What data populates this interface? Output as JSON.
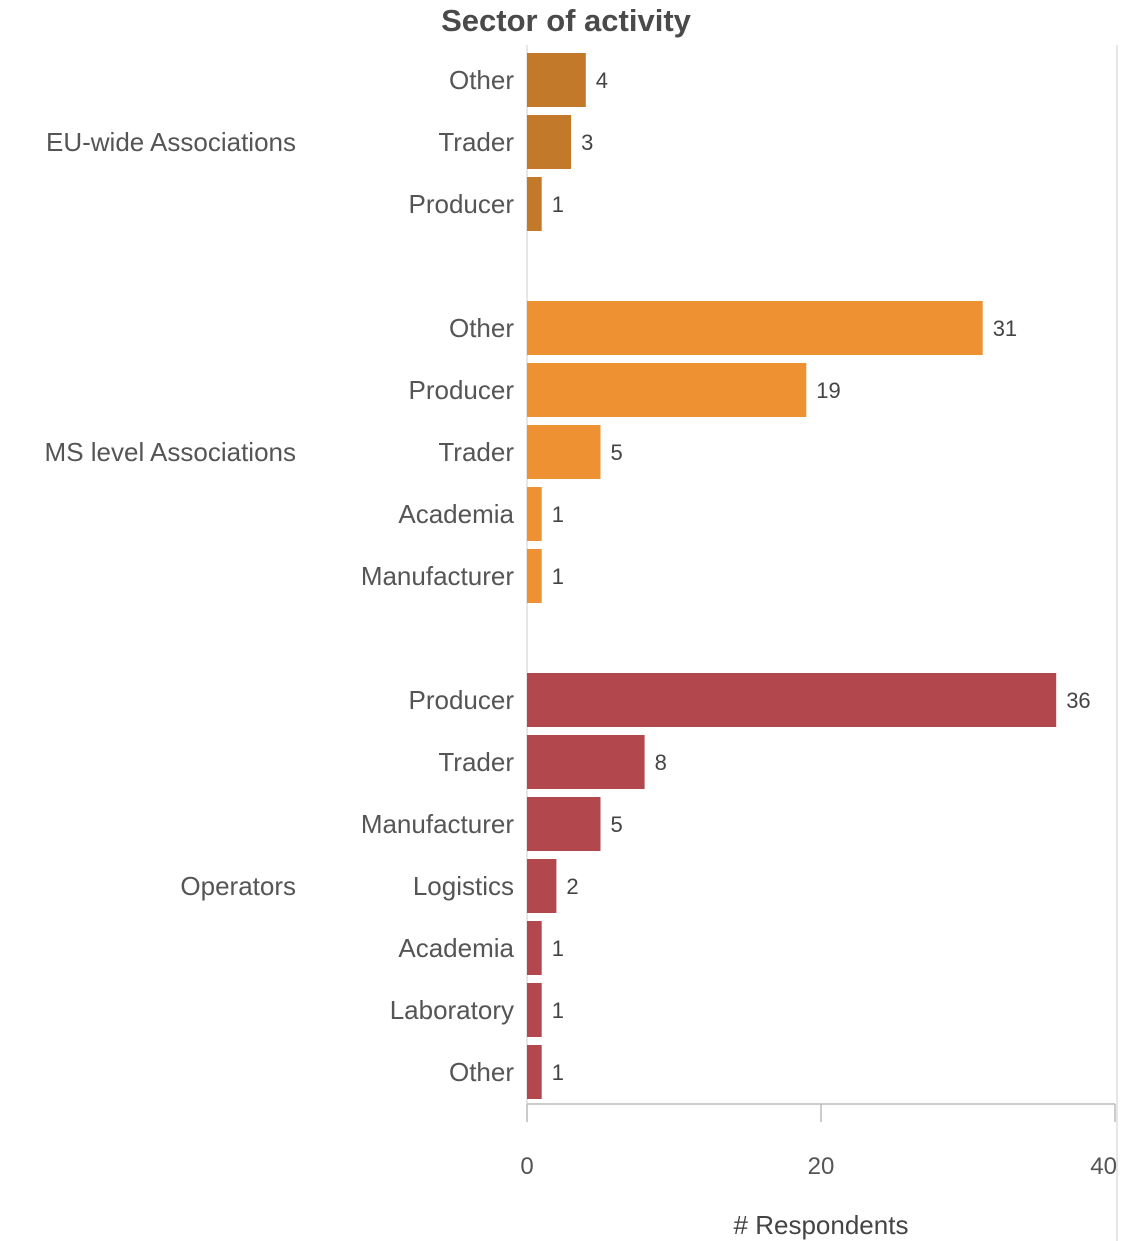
{
  "chart_data": {
    "type": "bar",
    "orientation": "horizontal",
    "title": "Sector of activity",
    "xlabel": "# Respondents",
    "ylabel": "",
    "xlim": [
      0,
      40
    ],
    "x_ticks": [
      "0",
      "20",
      "40"
    ],
    "grid": false,
    "legend": "none",
    "groups": [
      {
        "name": "EU-wide Associations",
        "color": "#c27a2a",
        "categories": [
          "Other",
          "Trader",
          "Producer"
        ],
        "values": [
          4,
          3,
          1
        ],
        "value_labels": [
          "4",
          "3",
          "1"
        ]
      },
      {
        "name": "MS level Associations",
        "color": "#ee9133",
        "categories": [
          "Other",
          "Producer",
          "Trader",
          "Academia",
          "Manufacturer"
        ],
        "values": [
          31,
          19,
          5,
          1,
          1
        ],
        "value_labels": [
          "31",
          "19",
          "5",
          "1",
          "1"
        ]
      },
      {
        "name": "Operators",
        "color": "#b2484e",
        "categories": [
          "Producer",
          "Trader",
          "Manufacturer",
          "Logistics",
          "Academia",
          "Laboratory",
          "Other"
        ],
        "values": [
          36,
          8,
          5,
          2,
          1,
          1,
          1
        ],
        "value_labels": [
          "36",
          "8",
          "5",
          "2",
          "1",
          "1",
          "1"
        ]
      }
    ]
  }
}
